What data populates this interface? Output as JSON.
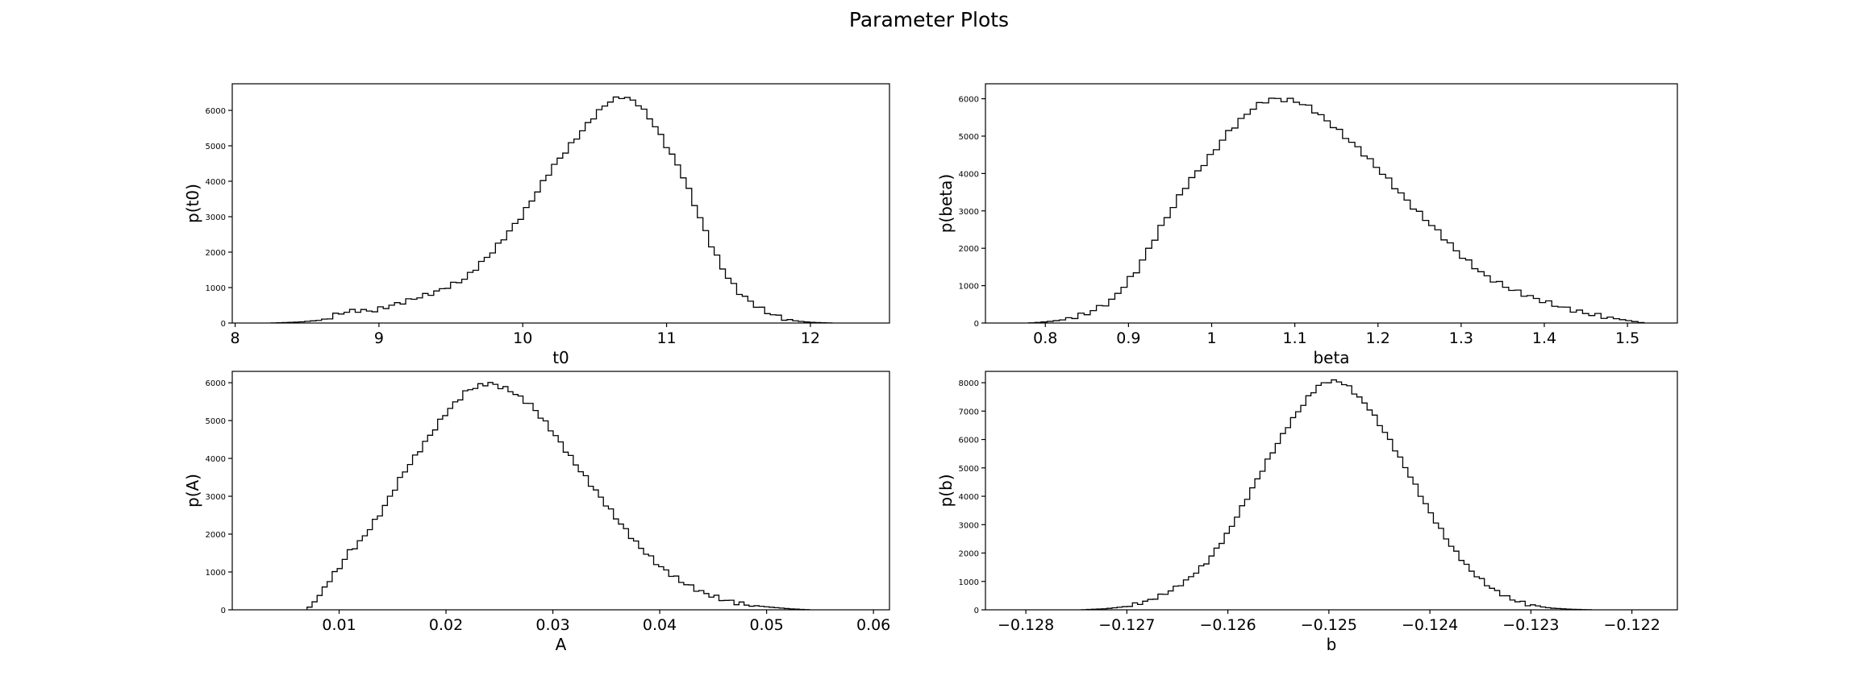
{
  "figure": {
    "suptitle": "Parameter Plots"
  },
  "chart_data": [
    {
      "type": "histogram",
      "xlabel": "t0",
      "ylabel": "p(t0)",
      "xlim": [
        7.98,
        12.55
      ],
      "ylim": [
        0,
        6750
      ],
      "xticks": [
        8,
        9,
        10,
        11,
        12
      ],
      "yticks": [
        0,
        1000,
        2000,
        3000,
        4000,
        5000,
        6000
      ],
      "line_color": "#000000",
      "profile_points": [
        [
          8.25,
          0
        ],
        [
          8.45,
          30
        ],
        [
          8.6,
          80
        ],
        [
          8.75,
          300
        ],
        [
          8.85,
          360
        ],
        [
          8.95,
          330
        ],
        [
          9.05,
          450
        ],
        [
          9.2,
          630
        ],
        [
          9.4,
          880
        ],
        [
          9.6,
          1250
        ],
        [
          9.8,
          2050
        ],
        [
          10.0,
          3050
        ],
        [
          10.2,
          4350
        ],
        [
          10.4,
          5350
        ],
        [
          10.5,
          5850
        ],
        [
          10.6,
          6250
        ],
        [
          10.7,
          6400
        ],
        [
          10.8,
          6200
        ],
        [
          10.9,
          5700
        ],
        [
          11.0,
          5000
        ],
        [
          11.1,
          4300
        ],
        [
          11.2,
          3300
        ],
        [
          11.3,
          2300
        ],
        [
          11.4,
          1450
        ],
        [
          11.5,
          880
        ],
        [
          11.6,
          550
        ],
        [
          11.7,
          300
        ],
        [
          11.8,
          150
        ],
        [
          11.9,
          60
        ],
        [
          12.0,
          20
        ],
        [
          12.15,
          0
        ]
      ]
    },
    {
      "type": "histogram",
      "xlabel": "beta",
      "ylabel": "p(beta)",
      "xlim": [
        0.728,
        1.56
      ],
      "ylim": [
        0,
        6400
      ],
      "xticks": [
        0.8,
        0.9,
        1.0,
        1.1,
        1.2,
        1.3,
        1.4,
        1.5
      ],
      "yticks": [
        0,
        1000,
        2000,
        3000,
        4000,
        5000,
        6000
      ],
      "line_color": "#000000",
      "profile_points": [
        [
          0.78,
          0
        ],
        [
          0.8,
          30
        ],
        [
          0.82,
          80
        ],
        [
          0.85,
          250
        ],
        [
          0.88,
          600
        ],
        [
          0.91,
          1400
        ],
        [
          0.94,
          2600
        ],
        [
          0.97,
          3700
        ],
        [
          1.0,
          4500
        ],
        [
          1.02,
          5100
        ],
        [
          1.05,
          5750
        ],
        [
          1.07,
          6000
        ],
        [
          1.1,
          5950
        ],
        [
          1.12,
          5750
        ],
        [
          1.15,
          5200
        ],
        [
          1.18,
          4600
        ],
        [
          1.21,
          3900
        ],
        [
          1.24,
          3150
        ],
        [
          1.27,
          2500
        ],
        [
          1.3,
          1800
        ],
        [
          1.33,
          1250
        ],
        [
          1.36,
          900
        ],
        [
          1.39,
          650
        ],
        [
          1.42,
          430
        ],
        [
          1.45,
          260
        ],
        [
          1.48,
          140
        ],
        [
          1.5,
          70
        ],
        [
          1.52,
          0
        ]
      ]
    },
    {
      "type": "histogram",
      "xlabel": "A",
      "ylabel": "p(A)",
      "xlim": [
        0.0,
        0.0615
      ],
      "ylim": [
        0,
        6300
      ],
      "xticks": [
        0.01,
        0.02,
        0.03,
        0.04,
        0.05,
        0.06
      ],
      "yticks": [
        0,
        1000,
        2000,
        3000,
        4000,
        5000,
        6000
      ],
      "line_color": "#000000",
      "profile_points": [
        [
          0.007,
          0
        ],
        [
          0.008,
          300
        ],
        [
          0.009,
          750
        ],
        [
          0.01,
          1100
        ],
        [
          0.011,
          1550
        ],
        [
          0.012,
          1800
        ],
        [
          0.014,
          2600
        ],
        [
          0.016,
          3600
        ],
        [
          0.018,
          4400
        ],
        [
          0.02,
          5200
        ],
        [
          0.022,
          5800
        ],
        [
          0.024,
          6000
        ],
        [
          0.026,
          5800
        ],
        [
          0.028,
          5400
        ],
        [
          0.03,
          4700
        ],
        [
          0.032,
          3900
        ],
        [
          0.034,
          3150
        ],
        [
          0.036,
          2400
        ],
        [
          0.038,
          1700
        ],
        [
          0.04,
          1150
        ],
        [
          0.042,
          750
        ],
        [
          0.044,
          460
        ],
        [
          0.046,
          260
        ],
        [
          0.048,
          140
        ],
        [
          0.05,
          80
        ],
        [
          0.052,
          30
        ],
        [
          0.054,
          0
        ]
      ]
    },
    {
      "type": "histogram",
      "xlabel": "b",
      "ylabel": "p(b)",
      "xlim": [
        -0.1284,
        -0.12155
      ],
      "ylim": [
        0,
        8400
      ],
      "xticks": [
        -0.128,
        -0.127,
        -0.126,
        -0.125,
        -0.124,
        -0.123,
        -0.122
      ],
      "xtick_labels": [
        "−0.128",
        "−0.127",
        "−0.126",
        "−0.125",
        "−0.124",
        "−0.123",
        "−0.122"
      ],
      "yticks": [
        0,
        1000,
        2000,
        3000,
        4000,
        5000,
        6000,
        7000,
        8000
      ],
      "line_color": "#000000",
      "profile_points": [
        [
          -0.12745,
          0
        ],
        [
          -0.1272,
          40
        ],
        [
          -0.127,
          120
        ],
        [
          -0.1268,
          300
        ],
        [
          -0.1266,
          600
        ],
        [
          -0.1264,
          1050
        ],
        [
          -0.1262,
          1700
        ],
        [
          -0.126,
          2700
        ],
        [
          -0.1258,
          4000
        ],
        [
          -0.1256,
          5300
        ],
        [
          -0.1254,
          6500
        ],
        [
          -0.1252,
          7500
        ],
        [
          -0.1251,
          7900
        ],
        [
          -0.125,
          8050
        ],
        [
          -0.1249,
          8050
        ],
        [
          -0.1248,
          7850
        ],
        [
          -0.1246,
          7100
        ],
        [
          -0.1244,
          6000
        ],
        [
          -0.1242,
          4750
        ],
        [
          -0.124,
          3450
        ],
        [
          -0.1238,
          2300
        ],
        [
          -0.1236,
          1400
        ],
        [
          -0.1234,
          780
        ],
        [
          -0.1232,
          380
        ],
        [
          -0.123,
          160
        ],
        [
          -0.1228,
          60
        ],
        [
          -0.1226,
          20
        ],
        [
          -0.1224,
          0
        ]
      ]
    }
  ]
}
